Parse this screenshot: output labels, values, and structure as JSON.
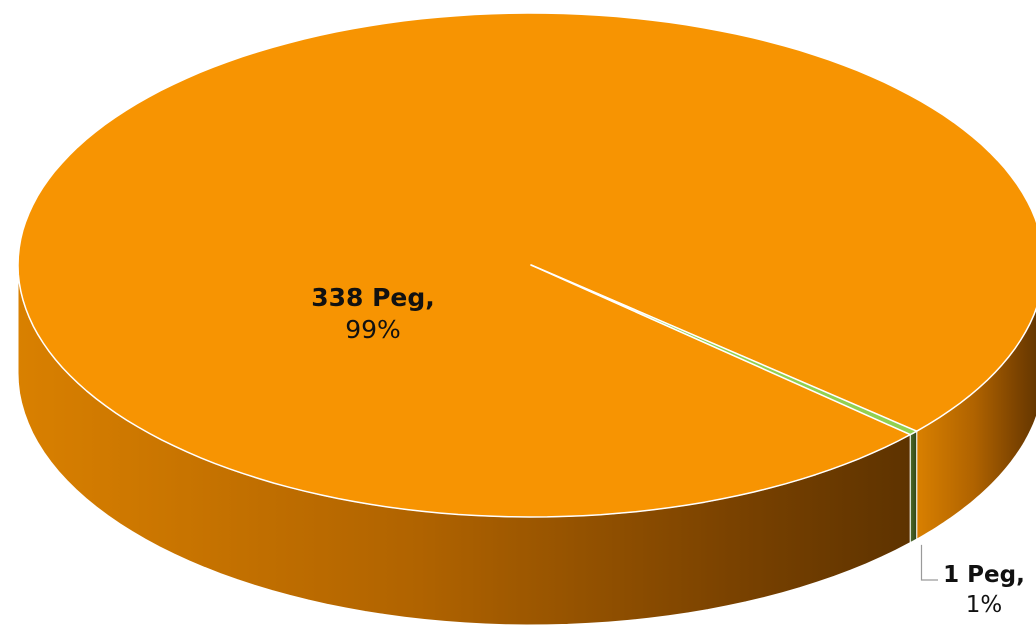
{
  "chart_data": {
    "type": "pie",
    "title": "",
    "slices": [
      {
        "name": "338 Peg",
        "value": 338,
        "percent_label": "99%",
        "color": "#F79402"
      },
      {
        "name": "1 Peg",
        "value": 1,
        "percent_label": "1%",
        "color": "#92D050"
      }
    ],
    "labels": [
      {
        "line1": "338 Peg,",
        "line2": "99%"
      },
      {
        "line1": "1 Peg,",
        "line2": "1%"
      }
    ],
    "style": "3d-exploded-perspective",
    "legend": "none"
  }
}
